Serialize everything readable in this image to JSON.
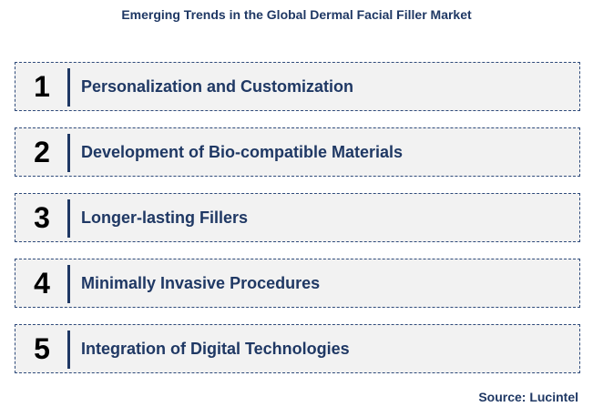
{
  "title": "Emerging Trends in the Global Dermal Facial Filler Market",
  "items": [
    {
      "number": "1",
      "label": "Personalization and Customization"
    },
    {
      "number": "2",
      "label": "Development of Bio-compatible Materials"
    },
    {
      "number": "3",
      "label": "Longer-lasting Fillers"
    },
    {
      "number": "4",
      "label": "Minimally Invasive Procedures"
    },
    {
      "number": "5",
      "label": "Integration of Digital Technologies"
    }
  ],
  "source": "Source: Lucintel",
  "colors": {
    "text_primary": "#1f3864",
    "box_background": "#f2f2f2",
    "box_border": "#2e4a7a",
    "number": "#000000"
  }
}
